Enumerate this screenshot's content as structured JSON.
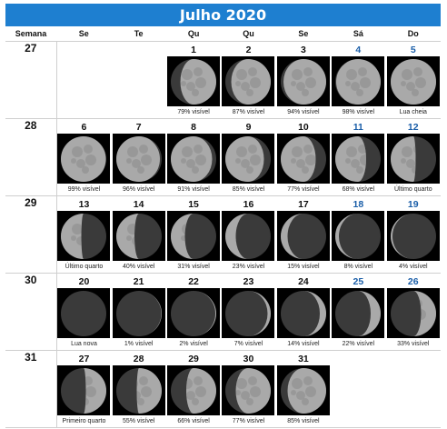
{
  "calendar": {
    "title": "Julho 2020",
    "week_col_header": "Semana",
    "day_headers": [
      "Se",
      "Te",
      "Qu",
      "Qu",
      "Se",
      "Sá",
      "Do"
    ],
    "weeks": [
      {
        "number": "27",
        "days": [
          null,
          null,
          {
            "day": "1",
            "label": "79% visível",
            "illum": 0.79,
            "waxing": true,
            "weekend": false
          },
          {
            "day": "2",
            "label": "87% visível",
            "illum": 0.87,
            "waxing": true,
            "weekend": false
          },
          {
            "day": "3",
            "label": "94% visível",
            "illum": 0.94,
            "waxing": true,
            "weekend": false
          },
          {
            "day": "4",
            "label": "98% visível",
            "illum": 0.98,
            "waxing": true,
            "weekend": true
          },
          {
            "day": "5",
            "label": "Lua cheia",
            "illum": 1.0,
            "waxing": true,
            "weekend": true
          }
        ]
      },
      {
        "number": "28",
        "days": [
          {
            "day": "6",
            "label": "99% visível",
            "illum": 0.99,
            "waxing": false,
            "weekend": false
          },
          {
            "day": "7",
            "label": "96% visível",
            "illum": 0.96,
            "waxing": false,
            "weekend": false
          },
          {
            "day": "8",
            "label": "91% visível",
            "illum": 0.91,
            "waxing": false,
            "weekend": false
          },
          {
            "day": "9",
            "label": "85% visível",
            "illum": 0.85,
            "waxing": false,
            "weekend": false
          },
          {
            "day": "10",
            "label": "77% visível",
            "illum": 0.77,
            "waxing": false,
            "weekend": false
          },
          {
            "day": "11",
            "label": "68% visível",
            "illum": 0.68,
            "waxing": false,
            "weekend": true
          },
          {
            "day": "12",
            "label": "Último quarto",
            "illum": 0.55,
            "waxing": false,
            "weekend": true
          }
        ]
      },
      {
        "number": "29",
        "days": [
          {
            "day": "13",
            "label": "Último quarto",
            "illum": 0.45,
            "waxing": false,
            "weekend": false
          },
          {
            "day": "14",
            "label": "40% visível",
            "illum": 0.4,
            "waxing": false,
            "weekend": false
          },
          {
            "day": "15",
            "label": "31% visível",
            "illum": 0.31,
            "waxing": false,
            "weekend": false
          },
          {
            "day": "16",
            "label": "23% visível",
            "illum": 0.23,
            "waxing": false,
            "weekend": false
          },
          {
            "day": "17",
            "label": "15% visível",
            "illum": 0.15,
            "waxing": false,
            "weekend": false
          },
          {
            "day": "18",
            "label": "8% visível",
            "illum": 0.08,
            "waxing": false,
            "weekend": true
          },
          {
            "day": "19",
            "label": "4% visível",
            "illum": 0.04,
            "waxing": false,
            "weekend": true
          }
        ]
      },
      {
        "number": "30",
        "days": [
          {
            "day": "20",
            "label": "Lua nova",
            "illum": 0.0,
            "waxing": true,
            "weekend": false
          },
          {
            "day": "21",
            "label": "1% visível",
            "illum": 0.01,
            "waxing": true,
            "weekend": false
          },
          {
            "day": "22",
            "label": "2% visível",
            "illum": 0.02,
            "waxing": true,
            "weekend": false
          },
          {
            "day": "23",
            "label": "7% visível",
            "illum": 0.07,
            "waxing": true,
            "weekend": false
          },
          {
            "day": "24",
            "label": "14% visível",
            "illum": 0.14,
            "waxing": true,
            "weekend": false
          },
          {
            "day": "25",
            "label": "22% visível",
            "illum": 0.22,
            "waxing": true,
            "weekend": true
          },
          {
            "day": "26",
            "label": "33% visível",
            "illum": 0.33,
            "waxing": true,
            "weekend": true
          }
        ]
      },
      {
        "number": "31",
        "days": [
          {
            "day": "27",
            "label": "Primeiro quarto",
            "illum": 0.45,
            "waxing": true,
            "weekend": false
          },
          {
            "day": "28",
            "label": "55% visível",
            "illum": 0.55,
            "waxing": true,
            "weekend": false
          },
          {
            "day": "29",
            "label": "66% visível",
            "illum": 0.66,
            "waxing": true,
            "weekend": false
          },
          {
            "day": "30",
            "label": "77% visível",
            "illum": 0.77,
            "waxing": true,
            "weekend": false
          },
          {
            "day": "31",
            "label": "85% visível",
            "illum": 0.85,
            "waxing": true,
            "weekend": false
          },
          null,
          null
        ]
      }
    ]
  },
  "colors": {
    "header_bg": "#1e7fd0",
    "weekend_day": "#1a5ea8",
    "moon_bg": "#000000",
    "moon_lit": "#a9a9a9",
    "moon_dark": "#3a3a3a"
  }
}
